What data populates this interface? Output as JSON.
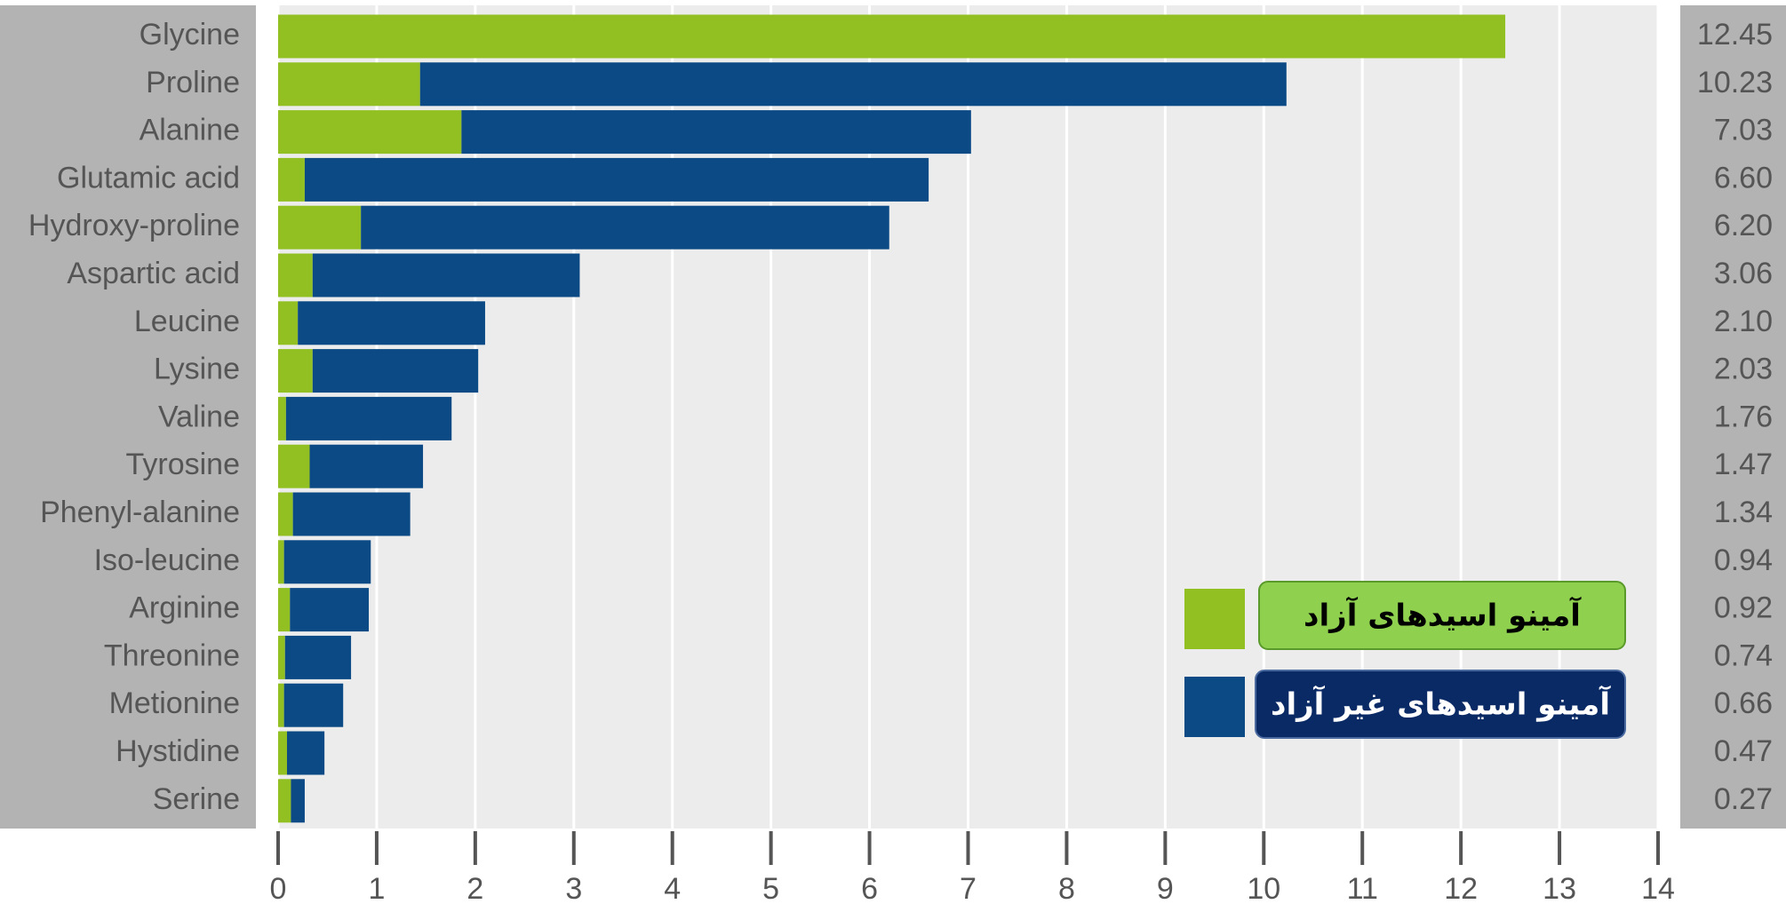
{
  "chart_data": {
    "type": "stacked-barh",
    "categories": [
      "Glycine",
      "Proline",
      "Alanine",
      "Glutamic acid",
      "Hydroxy-proline",
      "Aspartic acid",
      "Leucine",
      "Lysine",
      "Valine",
      "Tyrosine",
      "Phenyl-alanine",
      "Iso-leucine",
      "Arginine",
      "Threonine",
      "Metionine",
      "Hystidine",
      "Serine"
    ],
    "series": [
      {
        "name": "آمینو اسیدهای آزاد",
        "color": "#92c023",
        "values": [
          12.45,
          1.44,
          1.86,
          0.27,
          0.84,
          0.35,
          0.2,
          0.35,
          0.08,
          0.32,
          0.15,
          0.06,
          0.12,
          0.07,
          0.06,
          0.09,
          0.13
        ]
      },
      {
        "name": "آمینو اسیدهای غیر آزاد",
        "color": "#0c4a86",
        "values": [
          0,
          8.79,
          5.17,
          6.33,
          5.36,
          2.71,
          1.9,
          1.68,
          1.68,
          1.15,
          1.19,
          0.88,
          0.8,
          0.67,
          0.6,
          0.38,
          0.14
        ]
      }
    ],
    "totals": [
      12.45,
      10.23,
      7.03,
      6.6,
      6.2,
      3.06,
      2.1,
      2.03,
      1.76,
      1.47,
      1.34,
      0.94,
      0.92,
      0.74,
      0.66,
      0.47,
      0.27
    ],
    "total_labels": [
      "12.45",
      "10.23",
      "7.03",
      "6.60",
      "6.20",
      "3.06",
      "2.10",
      "2.03",
      "1.76",
      "1.47",
      "1.34",
      "0.94",
      "0.92",
      "0.74",
      "0.66",
      "0.47",
      "0.27"
    ],
    "xlim": [
      0,
      14
    ],
    "xticks": [
      0,
      1,
      2,
      3,
      4,
      5,
      6,
      7,
      8,
      9,
      10,
      11,
      12,
      13,
      14
    ],
    "grid": true
  }
}
